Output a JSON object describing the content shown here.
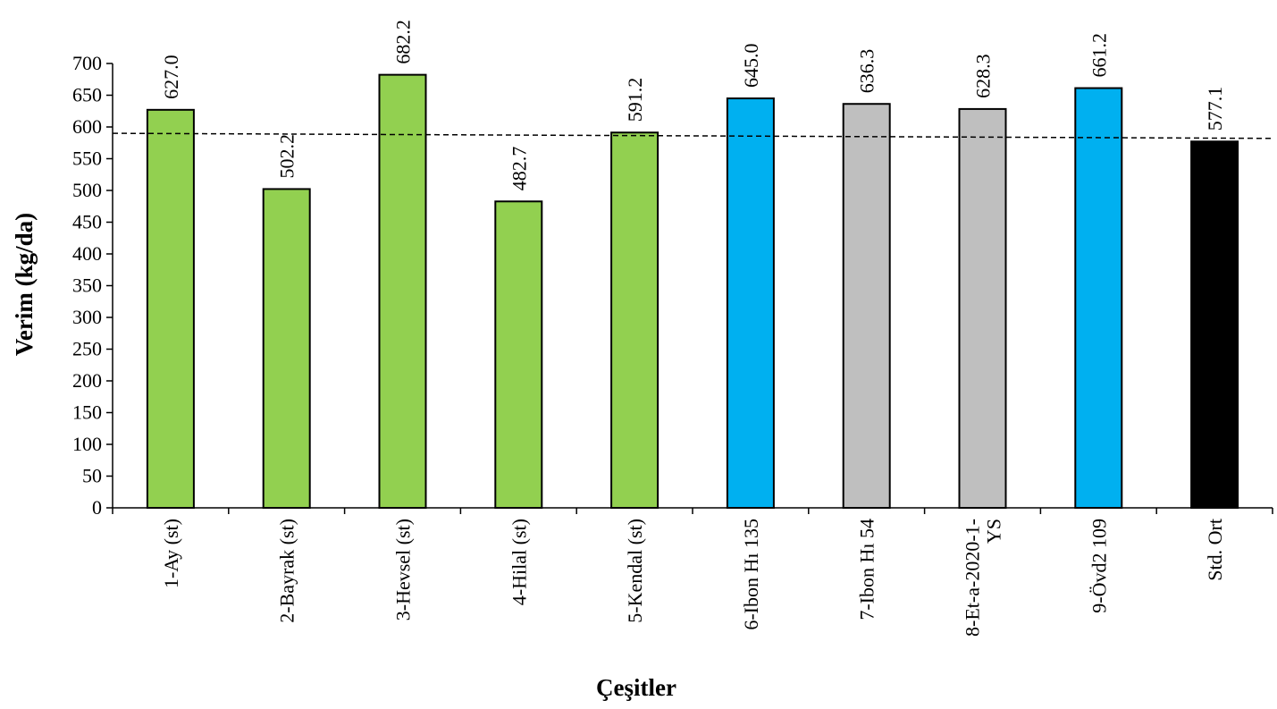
{
  "chart_data": {
    "type": "bar",
    "xlabel": "Çeşitler",
    "ylabel": "Verim (kg/da)",
    "ylim": [
      0,
      700
    ],
    "yticks": [
      0,
      50,
      100,
      150,
      200,
      250,
      300,
      350,
      400,
      450,
      500,
      550,
      600,
      650,
      700
    ],
    "grid": false,
    "legend": "none",
    "categories": [
      [
        "1-Ay (st)"
      ],
      [
        "2-Bayrak (st)"
      ],
      [
        "3-Hevsel (st)"
      ],
      [
        "4-Hilal (st)"
      ],
      [
        "5-Kendal (st)"
      ],
      [
        "6-Ibon Hı 135"
      ],
      [
        "7-Ibon Hı 54"
      ],
      [
        "8-Et-a-2020-1-",
        "YS"
      ],
      [
        "9-Övd2 109"
      ],
      [
        "Std. Ort"
      ]
    ],
    "values": [
      627.0,
      502.2,
      682.2,
      482.7,
      591.2,
      645.0,
      636.3,
      628.3,
      661.2,
      577.1
    ],
    "value_labels": [
      "627.0",
      "502.2",
      "682.2",
      "482.7",
      "591.2",
      "645.0",
      "636.3",
      "628.3",
      "661.2",
      "577.1"
    ],
    "bar_colors": [
      "#92d050",
      "#92d050",
      "#92d050",
      "#92d050",
      "#92d050",
      "#00b0f0",
      "#bfbfbf",
      "#bfbfbf",
      "#00b0f0",
      "#000000"
    ],
    "trend_line": {
      "style": "dashed",
      "start_value": 590,
      "end_value": 582
    }
  }
}
